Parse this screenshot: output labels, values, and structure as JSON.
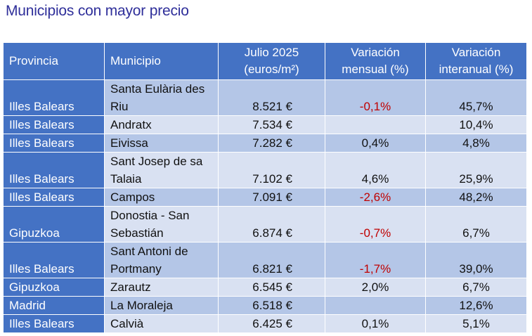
{
  "title": "Municipios con mayor precio",
  "headers": {
    "provincia": "Provincia",
    "municipio": "Municipio",
    "precio_1": "Julio 2025",
    "precio_2": "(euros/m²)",
    "mensual_1": "Variación",
    "mensual_2": "mensual (%)",
    "interanual_1": "Variación",
    "interanual_2": "interanual (%)"
  },
  "rows": [
    {
      "provincia": "Illes Balears",
      "municipio_1": "Santa Eulària des",
      "municipio_2": "Riu",
      "precio": "8.521 €",
      "mensual": "-0,1%",
      "interanual": "45,7%"
    },
    {
      "provincia": "Illes Balears",
      "municipio": "Andratx",
      "precio": "7.534 €",
      "mensual": "",
      "interanual": "10,4%"
    },
    {
      "provincia": "Illes Balears",
      "municipio": "Eivissa",
      "precio": "7.282 €",
      "mensual": "0,4%",
      "interanual": "4,8%"
    },
    {
      "provincia": "Illes Balears",
      "municipio_1": "Sant Josep de sa",
      "municipio_2": "Talaia",
      "precio": "7.102 €",
      "mensual": "4,6%",
      "interanual": "25,9%"
    },
    {
      "provincia": "Illes Balears",
      "municipio": "Campos",
      "precio": "7.091 €",
      "mensual": "-2,6%",
      "interanual": "48,2%"
    },
    {
      "provincia": "Gipuzkoa",
      "municipio_1": "Donostia - San",
      "municipio_2": "Sebastián",
      "precio": "6.874 €",
      "mensual": "-0,7%",
      "interanual": "6,7%"
    },
    {
      "provincia": "Illes Balears",
      "municipio_1": "Sant Antoni de",
      "municipio_2": "Portmany",
      "precio": "6.821 €",
      "mensual": "-1,7%",
      "interanual": "39,0%"
    },
    {
      "provincia": "Gipuzkoa",
      "municipio": "Zarautz",
      "precio": "6.545 €",
      "mensual": "2,0%",
      "interanual": "6,7%"
    },
    {
      "provincia": "Madrid",
      "municipio": "La Moraleja",
      "precio": "6.518 €",
      "mensual": "",
      "interanual": "12,6%"
    },
    {
      "provincia": "Illes Balears",
      "municipio": "Calvià",
      "precio": "6.425 €",
      "mensual": "0,1%",
      "interanual": "5,1%"
    }
  ],
  "colors": {
    "title": "#2f2f9a",
    "header_bg": "#4472c4",
    "row_dark": "#b4c6e7",
    "row_light": "#d9e1f2",
    "negative": "#c00000"
  }
}
